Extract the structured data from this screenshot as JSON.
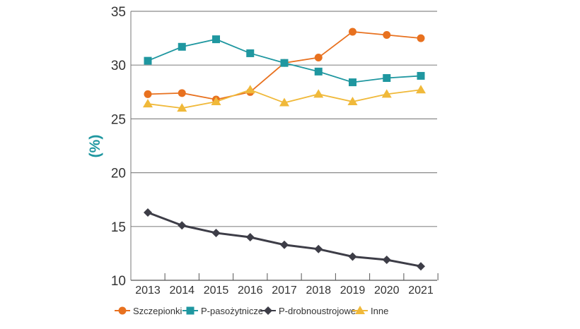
{
  "chart_data": {
    "type": "line",
    "title": "",
    "xlabel": "",
    "ylabel": "(%)",
    "ylim": [
      10,
      35
    ],
    "yticks": [
      10,
      15,
      20,
      25,
      30,
      35
    ],
    "grid": true,
    "legend_position": "bottom",
    "categories": [
      "2013",
      "2014",
      "2015",
      "2016",
      "2017",
      "2018",
      "2019",
      "2020",
      "2021"
    ],
    "series": [
      {
        "name": "Szczepionki",
        "color": "#e8711f",
        "marker": "circle",
        "values": [
          27.3,
          27.4,
          26.8,
          27.5,
          30.2,
          30.7,
          33.1,
          32.8,
          32.5
        ]
      },
      {
        "name": "P-pasożytnicze",
        "color": "#1f97a0",
        "marker": "square",
        "values": [
          30.4,
          31.7,
          32.4,
          31.1,
          30.2,
          29.4,
          28.4,
          28.8,
          29.0
        ]
      },
      {
        "name": "P-drobnoustrojowe",
        "color": "#3d3d47",
        "marker": "diamond",
        "values": [
          16.3,
          15.1,
          14.4,
          14.0,
          13.3,
          12.9,
          12.2,
          11.9,
          11.3
        ]
      },
      {
        "name": "Inne",
        "color": "#f0b93a",
        "marker": "triangle",
        "values": [
          26.4,
          26.0,
          26.6,
          27.7,
          26.5,
          27.3,
          26.6,
          27.3,
          27.7
        ]
      }
    ],
    "ylabel_color": "#1f97a0"
  }
}
